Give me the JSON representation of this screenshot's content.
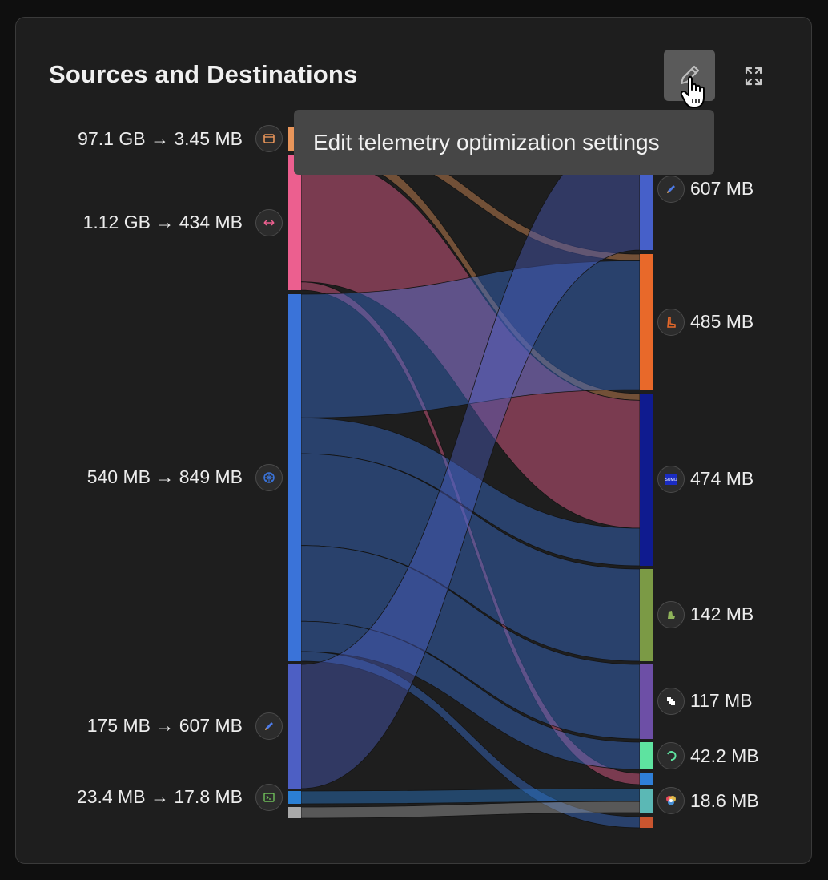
{
  "widget": {
    "title": "Sources and Destinations",
    "tooltip": "Edit telemetry optimization settings"
  },
  "chart_data": {
    "type": "sankey",
    "title": "Sources and Destinations",
    "sources": [
      {
        "name": "source-1",
        "label": "97.1 GB → 3.45 MB",
        "color": "#e8955a",
        "icon": "browser-window-icon"
      },
      {
        "name": "source-2",
        "label": "1.12 GB → 434 MB",
        "color": "#ec5f8f",
        "icon": "arrows-horizontal-icon"
      },
      {
        "name": "source-3",
        "label": "540 MB → 849 MB",
        "color": "#3a73d9",
        "icon": "kubernetes-icon"
      },
      {
        "name": "source-4",
        "label": "175 MB → 607 MB",
        "color": "#4d5fc4",
        "icon": "pencil-icon"
      },
      {
        "name": "source-5",
        "label": "23.4 MB → 17.8 MB",
        "color": "#2b7fd4",
        "icon": "terminal-icon"
      },
      {
        "name": "source-6",
        "label": "",
        "color": "#a9a9a9",
        "icon": ""
      }
    ],
    "destinations": [
      {
        "name": "dest-1",
        "label": "607 MB",
        "color": "#4660c9",
        "icon": "pencil-icon"
      },
      {
        "name": "dest-2",
        "label": "485 MB",
        "color": "#e8692a",
        "icon": "boot-icon"
      },
      {
        "name": "dest-3",
        "label": "474 MB",
        "color": "#0f1b8f",
        "icon": "sumo-icon"
      },
      {
        "name": "dest-4",
        "label": "142 MB",
        "color": "#7b9a45",
        "icon": "elastic-icon"
      },
      {
        "name": "dest-5",
        "label": "117 MB",
        "color": "#6d4fa6",
        "icon": "puzzle-icon"
      },
      {
        "name": "dest-6",
        "label": "42.2 MB",
        "color": "#5ee3a0",
        "icon": "loop-icon"
      },
      {
        "name": "dest-7",
        "label": "",
        "color": "#2f7fd8",
        "icon": ""
      },
      {
        "name": "dest-8",
        "label": "18.6 MB",
        "color": "#5bb8b5",
        "icon": "pinwheel-icon"
      },
      {
        "name": "dest-9",
        "label": "",
        "color": "#c9552f",
        "icon": ""
      }
    ],
    "links": [
      {
        "source": 0,
        "target": 1,
        "weight": 8
      },
      {
        "source": 0,
        "target": 2,
        "weight": 8
      },
      {
        "source": 1,
        "target": 2,
        "weight": 153
      },
      {
        "source": 1,
        "target": 6,
        "weight": 10
      },
      {
        "source": 2,
        "target": 1,
        "weight": 155
      },
      {
        "source": 2,
        "target": 2,
        "weight": 45
      },
      {
        "source": 2,
        "target": 3,
        "weight": 115
      },
      {
        "source": 2,
        "target": 4,
        "weight": 95
      },
      {
        "source": 2,
        "target": 5,
        "weight": 38
      },
      {
        "source": 2,
        "target": 8,
        "weight": 12
      },
      {
        "source": 3,
        "target": 0,
        "weight": 155
      },
      {
        "source": 4,
        "target": 7,
        "weight": 16
      },
      {
        "source": 5,
        "target": 7,
        "weight": 14
      }
    ]
  }
}
